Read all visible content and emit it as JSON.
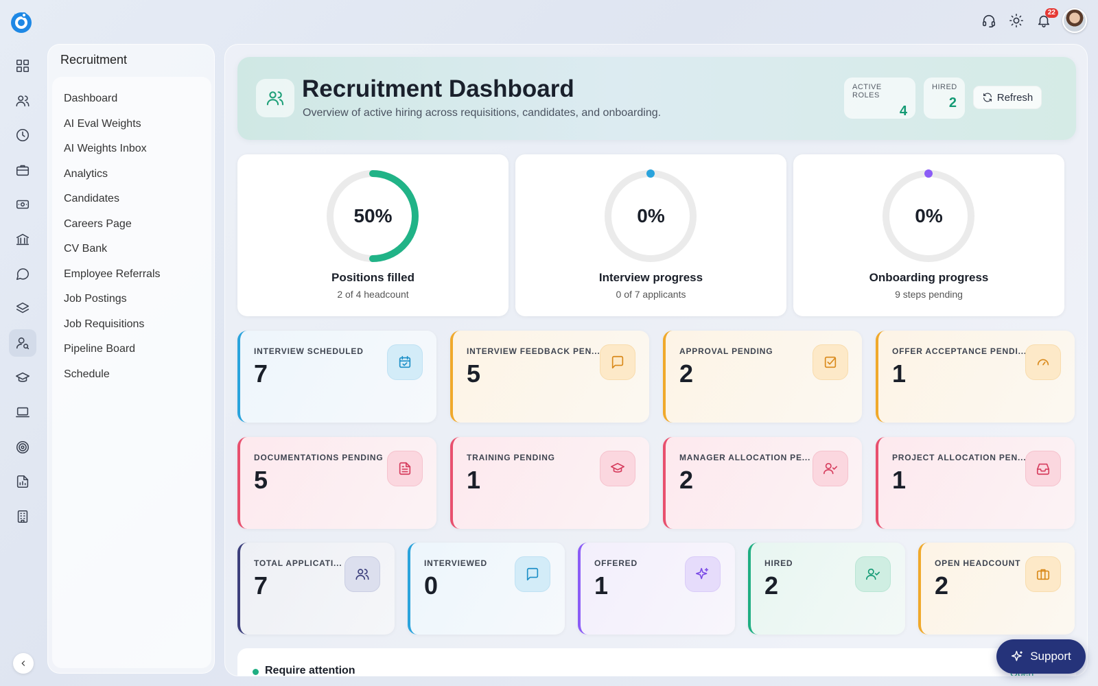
{
  "app": {
    "section_title": "Recruitment"
  },
  "rail": {
    "icons": [
      "grid-icon",
      "users-icon",
      "clock-icon",
      "briefcase-icon",
      "money-icon",
      "bank-icon",
      "chat-icon",
      "layers-icon",
      "user-search-icon",
      "graduation-icon",
      "laptop-icon",
      "target-icon",
      "report-icon",
      "building-icon"
    ],
    "active": "user-search-icon"
  },
  "subnav": {
    "items": [
      {
        "label": "Dashboard"
      },
      {
        "label": "AI Eval Weights"
      },
      {
        "label": "AI Weights Inbox"
      },
      {
        "label": "Analytics"
      },
      {
        "label": "Candidates"
      },
      {
        "label": "Careers Page"
      },
      {
        "label": "CV Bank"
      },
      {
        "label": "Employee Referrals"
      },
      {
        "label": "Job Postings"
      },
      {
        "label": "Job Requisitions"
      },
      {
        "label": "Pipeline Board"
      },
      {
        "label": "Schedule"
      }
    ]
  },
  "header": {
    "title": "Recruitment Dashboard",
    "subtitle": "Overview of active hiring across requisitions, candidates, and onboarding.",
    "active_roles_label": "ACTIVE ROLES",
    "active_roles_value": "4",
    "hired_label": "HIRED",
    "hired_value": "2",
    "refresh_label": "Refresh"
  },
  "progress": [
    {
      "pct_label": "50%",
      "fraction": 0.5,
      "label": "Positions filled",
      "sub": "2 of 4 headcount",
      "color": "#21b387"
    },
    {
      "pct_label": "0%",
      "fraction": 0,
      "label": "Interview progress",
      "sub": "0 of 7 applicants",
      "color": "#2aa3dc"
    },
    {
      "pct_label": "0%",
      "fraction": 0,
      "label": "Onboarding progress",
      "sub": "9 steps pending",
      "color": "#8b5cf6"
    }
  ],
  "stats_row1": [
    {
      "label": "INTERVIEW SCHEDULED",
      "value": "7",
      "icon": "calendar-icon"
    },
    {
      "label": "INTERVIEW FEEDBACK PEN...",
      "value": "5",
      "icon": "message-icon"
    },
    {
      "label": "APPROVAL PENDING",
      "value": "2",
      "icon": "check-square-icon"
    },
    {
      "label": "OFFER ACCEPTANCE PENDI...",
      "value": "1",
      "icon": "gauge-icon"
    }
  ],
  "stats_row2": [
    {
      "label": "DOCUMENTATIONS PENDING",
      "value": "5",
      "icon": "document-icon"
    },
    {
      "label": "TRAINING PENDING",
      "value": "1",
      "icon": "graduation-cap-icon"
    },
    {
      "label": "MANAGER ALLOCATION PE...",
      "value": "2",
      "icon": "user-check-icon"
    },
    {
      "label": "PROJECT ALLOCATION PEN...",
      "value": "1",
      "icon": "inbox-icon"
    }
  ],
  "stats_row3": [
    {
      "label": "TOTAL APPLICATI...",
      "value": "7",
      "icon": "users-icon"
    },
    {
      "label": "INTERVIEWED",
      "value": "0",
      "icon": "message-icon"
    },
    {
      "label": "OFFERED",
      "value": "1",
      "icon": "sparkles-icon"
    },
    {
      "label": "HIRED",
      "value": "2",
      "icon": "user-check-icon"
    },
    {
      "label": "OPEN HEADCOUNT",
      "value": "2",
      "icon": "briefcase-icon"
    }
  ],
  "attention": {
    "title": "Require attention",
    "open_label": "Open"
  },
  "topbar": {
    "notification_count": "22"
  },
  "support": {
    "label": "Support"
  }
}
